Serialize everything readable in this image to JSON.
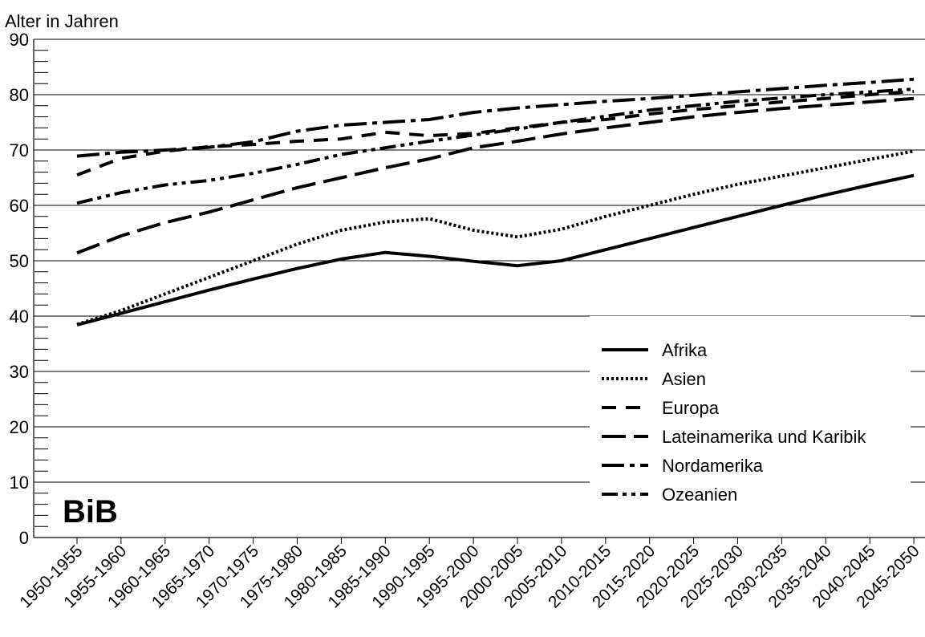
{
  "chart_data": {
    "type": "line",
    "ylabel": "Alter in Jahren",
    "ylim": [
      0,
      90
    ],
    "yticks": [
      "0",
      "10",
      "20",
      "30",
      "40",
      "50",
      "60",
      "70",
      "80",
      "90"
    ],
    "categories": [
      "1950-1955",
      "1955-1960",
      "1960-1965",
      "1965-1970",
      "1970-1975",
      "1975-1980",
      "1980-1985",
      "1985-1990",
      "1990-1995",
      "1995-2000",
      "2000-2005",
      "2005-2010",
      "2010-2015",
      "2015-2020",
      "2020-2025",
      "2025-2030",
      "2030-2035",
      "2035-2040",
      "2040-2045",
      "2045-2050"
    ],
    "grid": "horizontal",
    "legend_position": "bottom-right",
    "series": [
      {
        "name": "Afrika",
        "style": "solid",
        "values": [
          38.4,
          40.5,
          42.6,
          44.7,
          46.7,
          48.6,
          50.3,
          51.5,
          50.8,
          49.9,
          49.1,
          50.0,
          52.0,
          54.0,
          56.0,
          58.0,
          60.0,
          61.9,
          63.7,
          65.4
        ]
      },
      {
        "name": "Asien",
        "style": "dotted",
        "values": [
          38.5,
          41.0,
          44.0,
          47.0,
          50.0,
          53.0,
          55.5,
          57.0,
          57.6,
          55.5,
          54.3,
          55.7,
          58.0,
          60.0,
          62.0,
          63.8,
          65.3,
          66.8,
          68.3,
          69.8
        ]
      },
      {
        "name": "Europa",
        "style": "dashed",
        "values": [
          65.5,
          68.5,
          69.8,
          70.6,
          71.0,
          71.6,
          72.0,
          73.2,
          72.6,
          73.0,
          74.0,
          75.0,
          75.5,
          76.5,
          77.3,
          78.0,
          78.7,
          79.3,
          80.0,
          80.6
        ]
      },
      {
        "name": "Lateinamerika und Karibik",
        "style": "longdash",
        "values": [
          51.4,
          54.5,
          56.9,
          58.8,
          61.0,
          63.2,
          65.0,
          66.8,
          68.4,
          70.4,
          71.6,
          72.9,
          74.0,
          75.0,
          76.0,
          76.8,
          77.5,
          78.1,
          78.7,
          79.3
        ]
      },
      {
        "name": "Nordamerika",
        "style": "dashdot",
        "values": [
          68.9,
          69.6,
          70.0,
          70.5,
          71.5,
          73.4,
          74.5,
          75.0,
          75.5,
          76.8,
          77.6,
          78.2,
          78.8,
          79.3,
          79.9,
          80.5,
          81.1,
          81.7,
          82.2,
          82.8
        ]
      },
      {
        "name": "Ozeanien",
        "style": "dashdotdot",
        "values": [
          60.4,
          62.3,
          63.7,
          64.5,
          65.8,
          67.4,
          69.2,
          70.4,
          71.6,
          72.7,
          73.8,
          75.0,
          76.1,
          77.2,
          78.0,
          78.8,
          79.4,
          80.0,
          80.5,
          81.0
        ]
      }
    ]
  },
  "logo_text": "BiB"
}
